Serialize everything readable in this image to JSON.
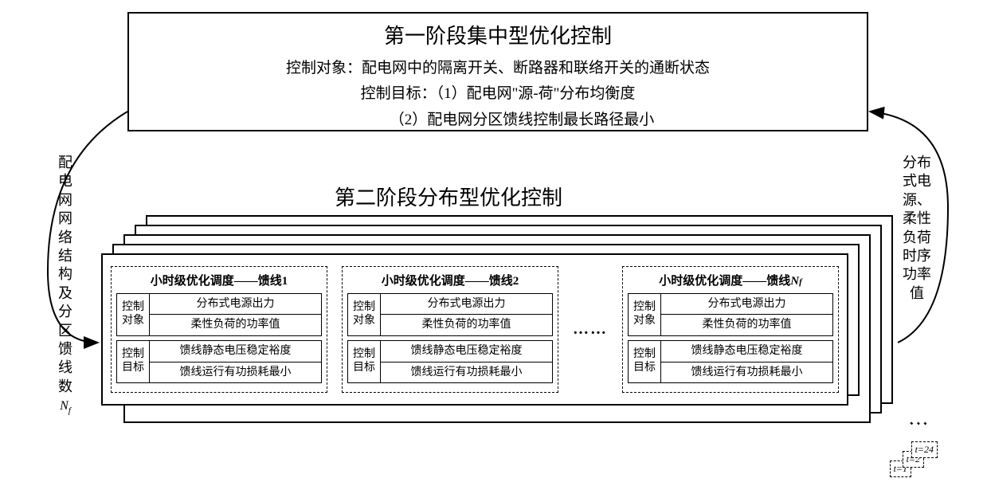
{
  "stage1": {
    "title": "第一阶段集中型优化控制",
    "line1": "控制对象：配电网中的隔离开关、断路器和联络开关的通断状态",
    "line2a": "控制目标：（1）配电网\"源-荷\"分布均衡度",
    "line2b": "（2）配电网分区馈线控制最长路径最小"
  },
  "stage2": {
    "title": "第二阶段分布型优化控制"
  },
  "leftArrow": {
    "text": "配电网网络结构及分区馈线数",
    "var": "N",
    "sub": "f"
  },
  "rightArrow": {
    "text": "分布式电源、柔性负荷时序功率值"
  },
  "feeders": [
    {
      "title_prefix": "小时级优化调度——馈线",
      "title_suffix": "1",
      "suffix_is_var": false,
      "control_object_label": "控制对象",
      "control_object_rows": [
        "分布式电源出力",
        "柔性负荷的功率值"
      ],
      "control_target_label": "控制目标",
      "control_target_rows": [
        "馈线静态电压稳定裕度",
        "馈线运行有功损耗最小"
      ]
    },
    {
      "title_prefix": "小时级优化调度——馈线",
      "title_suffix": "2",
      "suffix_is_var": false,
      "control_object_label": "控制对象",
      "control_object_rows": [
        "分布式电源出力",
        "柔性负荷的功率值"
      ],
      "control_target_label": "控制目标",
      "control_target_rows": [
        "馈线静态电压稳定裕度",
        "馈线运行有功损耗最小"
      ]
    },
    {
      "title_prefix": "小时级优化调度——馈线",
      "title_suffix": "N",
      "title_sub": "f",
      "suffix_is_var": true,
      "control_object_label": "控制对象",
      "control_object_rows": [
        "分布式电源出力",
        "柔性负荷的功率值"
      ],
      "control_target_label": "控制目标",
      "control_target_rows": [
        "馈线静态电压稳定裕度",
        "馈线运行有功损耗最小"
      ]
    }
  ],
  "dots": "……",
  "timeTags": {
    "t1": "t=1",
    "t2": "t=2",
    "t24": "t=24",
    "dots": "⋱"
  },
  "colors": {
    "border": "#000000",
    "background": "#ffffff",
    "text": "#000000"
  }
}
